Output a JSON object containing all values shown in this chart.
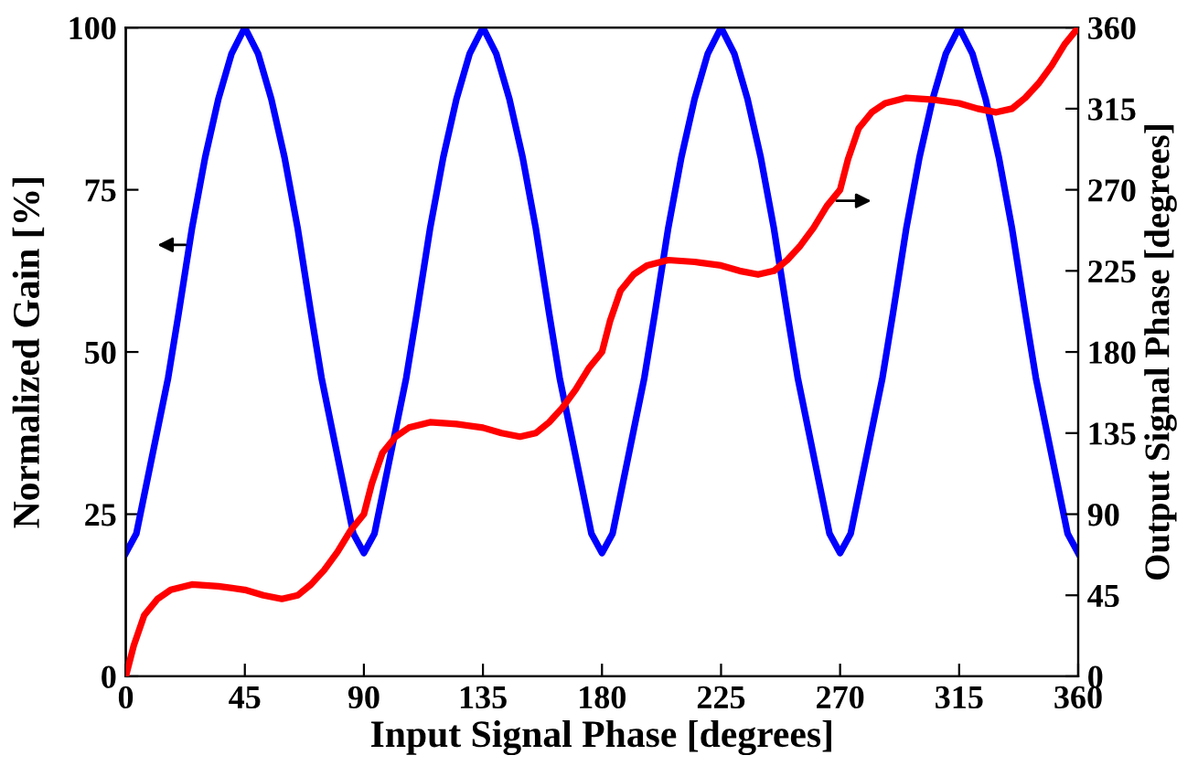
{
  "chart_data": {
    "type": "line",
    "xlabel": "Input Signal Phase [degrees]",
    "ylabel": "Normalized Gain [%]",
    "y2label": "Output Signal Phase [degrees]",
    "xlim": [
      0,
      360
    ],
    "xticks": [
      0,
      45,
      90,
      135,
      180,
      225,
      270,
      315,
      360
    ],
    "ylim": [
      0,
      100
    ],
    "yticks": [
      0,
      25,
      50,
      75,
      100
    ],
    "y2lim": [
      0,
      360
    ],
    "y2ticks": [
      0,
      45,
      90,
      135,
      180,
      225,
      270,
      315,
      360
    ],
    "line_style": "solid",
    "marker": "none",
    "series": [
      {
        "color": "#0000ff",
        "axis": "y",
        "x": [
          0,
          4,
          8,
          12,
          16,
          20,
          25,
          30,
          35,
          40,
          45,
          50,
          55,
          60,
          65,
          70,
          74,
          78,
          82,
          86,
          90,
          94,
          98,
          102,
          106,
          110,
          115,
          120,
          125,
          130,
          135,
          140,
          145,
          150,
          155,
          160,
          164,
          168,
          172,
          176,
          180,
          184,
          188,
          192,
          196,
          200,
          205,
          210,
          215,
          220,
          225,
          230,
          235,
          240,
          245,
          250,
          254,
          258,
          262,
          266,
          270,
          274,
          278,
          282,
          286,
          290,
          295,
          300,
          305,
          310,
          315,
          320,
          325,
          330,
          335,
          340,
          344,
          348,
          352,
          356,
          360
        ],
        "values": [
          19,
          22,
          30,
          38,
          46,
          56,
          69,
          80,
          89,
          96,
          100,
          96,
          89,
          80,
          69,
          56,
          46,
          38,
          30,
          22,
          19,
          22,
          30,
          38,
          46,
          56,
          69,
          80,
          89,
          96,
          100,
          96,
          89,
          80,
          69,
          56,
          46,
          38,
          30,
          22,
          19,
          22,
          30,
          38,
          46,
          56,
          69,
          80,
          89,
          96,
          100,
          96,
          89,
          80,
          69,
          56,
          46,
          38,
          30,
          22,
          19,
          22,
          30,
          38,
          46,
          56,
          69,
          80,
          89,
          96,
          100,
          96,
          89,
          80,
          69,
          56,
          46,
          38,
          30,
          22,
          19
        ]
      },
      {
        "color": "#ff0000",
        "axis": "y2",
        "x": [
          0,
          3,
          7,
          12,
          17,
          25,
          35,
          45,
          52,
          59,
          65,
          70,
          75,
          80,
          85,
          90,
          93,
          97,
          102,
          107,
          115,
          125,
          135,
          142,
          149,
          155,
          160,
          165,
          170,
          175,
          180,
          183,
          187,
          192,
          197,
          205,
          215,
          225,
          232,
          239,
          245,
          250,
          255,
          260,
          265,
          270,
          273,
          277,
          282,
          287,
          295,
          305,
          315,
          322,
          329,
          335,
          340,
          345,
          350,
          355,
          360
        ],
        "values": [
          0,
          17,
          34,
          43,
          48,
          51,
          50,
          48,
          45,
          43,
          45,
          51,
          59,
          69,
          81,
          90,
          107,
          124,
          133,
          138,
          141,
          140,
          138,
          135,
          133,
          135,
          141,
          149,
          159,
          171,
          180,
          197,
          214,
          223,
          228,
          231,
          230,
          228,
          225,
          223,
          225,
          231,
          239,
          249,
          261,
          270,
          287,
          304,
          313,
          318,
          321,
          320,
          318,
          315,
          313,
          315,
          321,
          329,
          339,
          351,
          360
        ]
      }
    ]
  }
}
